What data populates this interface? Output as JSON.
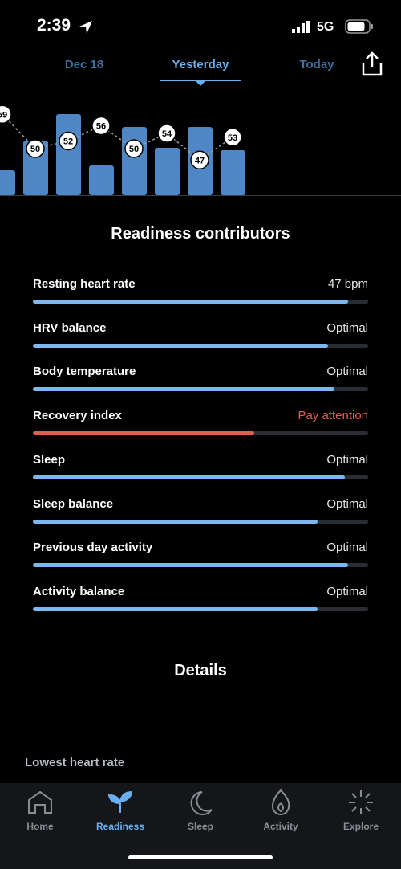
{
  "status_bar": {
    "time": "2:39",
    "network": "5G"
  },
  "tabs": {
    "items": [
      "Dec 18",
      "Yesterday",
      "Today"
    ],
    "active": 1
  },
  "trend": {
    "bars": [
      31,
      68,
      101,
      37,
      85,
      59,
      85,
      56
    ],
    "points": [
      59,
      50,
      52,
      56,
      50,
      54,
      47,
      53
    ]
  },
  "contributors": {
    "title": "Readiness contributors",
    "items": [
      {
        "name": "Resting heart rate",
        "status": "47 bpm",
        "level": 94,
        "alert": false
      },
      {
        "name": "HRV balance",
        "status": "Optimal",
        "level": 88,
        "alert": false
      },
      {
        "name": "Body temperature",
        "status": "Optimal",
        "level": 90,
        "alert": false
      },
      {
        "name": "Recovery index",
        "status": "Pay attention",
        "level": 66,
        "alert": true
      },
      {
        "name": "Sleep",
        "status": "Optimal",
        "level": 93,
        "alert": false
      },
      {
        "name": "Sleep balance",
        "status": "Optimal",
        "level": 85,
        "alert": false
      },
      {
        "name": "Previous day activity",
        "status": "Optimal",
        "level": 94,
        "alert": false
      },
      {
        "name": "Activity balance",
        "status": "Optimal",
        "level": 85,
        "alert": false
      }
    ]
  },
  "details": {
    "title": "Details",
    "first_label": "Lowest heart rate"
  },
  "nav": {
    "items": [
      "Home",
      "Readiness",
      "Sleep",
      "Activity",
      "Explore"
    ],
    "active": 1
  }
}
